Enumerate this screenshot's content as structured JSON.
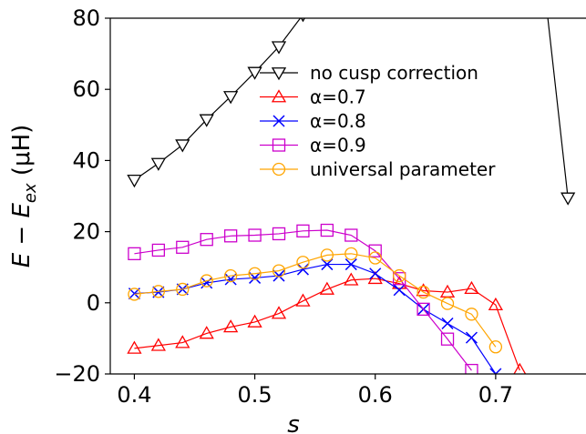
{
  "chart_data": {
    "type": "line",
    "xlabel": "s",
    "ylabel": "E − E_ex (μH)",
    "xlim": [
      0.38,
      0.775
    ],
    "ylim": [
      -20,
      80
    ],
    "xticks": [
      0.4,
      0.5,
      0.6,
      0.7
    ],
    "xtick_labels": [
      "0.4",
      "0.5",
      "0.6",
      "0.7"
    ],
    "yticks": [
      -20,
      0,
      20,
      40,
      60,
      80
    ],
    "ytick_labels": [
      "−20",
      "0",
      "20",
      "40",
      "60",
      "80"
    ],
    "grid": false,
    "legend_position": "upper center",
    "series": [
      {
        "name": "no cusp correction",
        "color": "#000000",
        "marker": "triangle-down",
        "x": [
          0.4,
          0.42,
          0.44,
          0.46,
          0.48,
          0.5,
          0.52,
          0.54,
          0.74,
          0.76
        ],
        "y": [
          34.5,
          39.2,
          44.4,
          51.5,
          58.0,
          64.8,
          72.0,
          81.0,
          90.0,
          29.5
        ]
      },
      {
        "name": "α=0.7",
        "color": "#ff0000",
        "marker": "triangle-up",
        "x": [
          0.4,
          0.42,
          0.44,
          0.46,
          0.48,
          0.5,
          0.52,
          0.54,
          0.56,
          0.58,
          0.6,
          0.62,
          0.64,
          0.66,
          0.68,
          0.7,
          0.72
        ],
        "y": [
          -12.8,
          -12.0,
          -11.2,
          -8.6,
          -6.8,
          -5.4,
          -3.0,
          0.5,
          3.8,
          6.4,
          6.8,
          5.4,
          3.4,
          3.0,
          4.0,
          -0.6,
          -19.0
        ]
      },
      {
        "name": "α=0.8",
        "color": "#0000ff",
        "marker": "x",
        "x": [
          0.4,
          0.42,
          0.44,
          0.46,
          0.48,
          0.5,
          0.52,
          0.54,
          0.56,
          0.58,
          0.6,
          0.62,
          0.64,
          0.66,
          0.68,
          0.7
        ],
        "y": [
          2.6,
          3.0,
          3.8,
          5.6,
          6.6,
          7.0,
          7.6,
          9.4,
          10.8,
          10.8,
          8.2,
          3.6,
          -1.8,
          -5.8,
          -9.8,
          -20.0
        ]
      },
      {
        "name": "α=0.9",
        "color": "#cc00cc",
        "marker": "square",
        "x": [
          0.4,
          0.42,
          0.44,
          0.46,
          0.48,
          0.5,
          0.52,
          0.54,
          0.56,
          0.58,
          0.6,
          0.62,
          0.64,
          0.66,
          0.68
        ],
        "y": [
          13.8,
          14.8,
          15.6,
          17.8,
          18.8,
          19.0,
          19.4,
          20.2,
          20.4,
          19.0,
          14.6,
          6.8,
          -1.8,
          -10.2,
          -19.0
        ]
      },
      {
        "name": "universal parameter",
        "color": "#ffa500",
        "marker": "circle",
        "x": [
          0.4,
          0.42,
          0.44,
          0.46,
          0.48,
          0.5,
          0.52,
          0.54,
          0.56,
          0.58,
          0.6,
          0.62,
          0.64,
          0.66,
          0.68,
          0.7
        ],
        "y": [
          2.4,
          3.2,
          3.8,
          6.2,
          7.6,
          8.2,
          9.0,
          11.4,
          13.4,
          13.8,
          12.6,
          7.6,
          3.0,
          -0.2,
          -3.2,
          -12.4
        ]
      }
    ]
  }
}
